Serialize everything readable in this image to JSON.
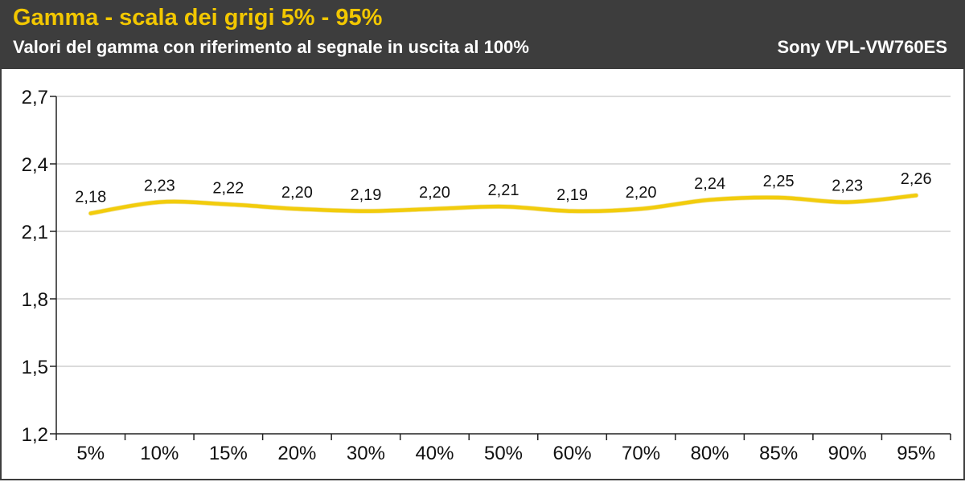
{
  "header": {
    "title": "Gamma - scala dei grigi 5% - 95%",
    "subtitle": "Valori del gamma con riferimento al segnale in uscita al 100%",
    "device": "Sony VPL-VW760ES"
  },
  "colors": {
    "header_bg": "#3d3d3d",
    "title": "#f2c700",
    "line": "#f2cc0c",
    "grid": "#cfcfcf"
  },
  "chart_data": {
    "type": "line",
    "categories": [
      "5%",
      "10%",
      "15%",
      "20%",
      "30%",
      "40%",
      "50%",
      "60%",
      "70%",
      "80%",
      "85%",
      "90%",
      "95%"
    ],
    "values": [
      2.18,
      2.23,
      2.22,
      2.2,
      2.19,
      2.2,
      2.21,
      2.19,
      2.2,
      2.24,
      2.25,
      2.23,
      2.26
    ],
    "value_labels": [
      "2,18",
      "2,23",
      "2,22",
      "2,20",
      "2,19",
      "2,20",
      "2,21",
      "2,19",
      "2,20",
      "2,24",
      "2,25",
      "2,23",
      "2,26"
    ],
    "yticks": [
      1.2,
      1.5,
      1.8,
      2.1,
      2.4,
      2.7
    ],
    "ytick_labels": [
      "1,2",
      "1,5",
      "1,8",
      "2,1",
      "2,4",
      "2,7"
    ],
    "ylim": [
      1.2,
      2.7
    ],
    "grid": true,
    "legend": "none",
    "smooth": true
  }
}
